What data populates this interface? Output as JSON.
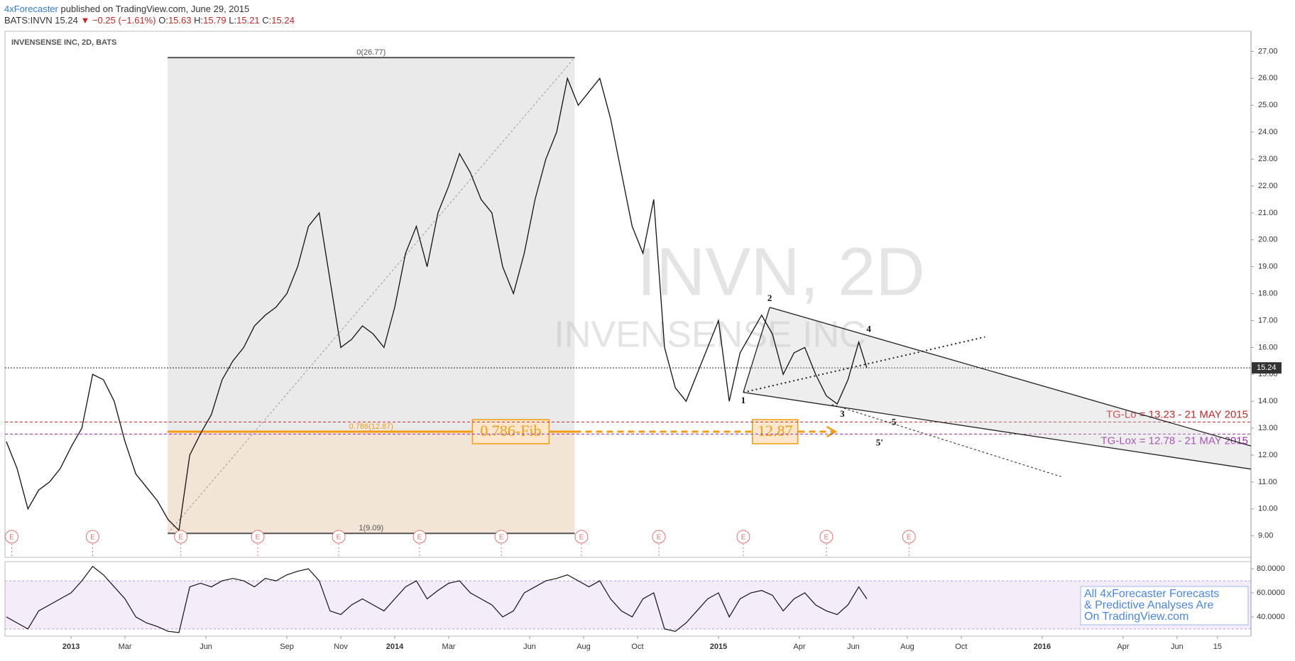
{
  "header": {
    "publisher": "4xForecaster",
    "published": "published on TradingView.com, June 29, 2015",
    "symbol": "BATS:INVN",
    "last": "15.24",
    "change": "▼ −0.25 (−1.61%)",
    "ohlc": [
      {
        "key": "O:",
        "value": "15.63"
      },
      {
        "key": "H:",
        "value": "15.79"
      },
      {
        "key": "L:",
        "value": "15.21"
      },
      {
        "key": "C:",
        "value": "15.24"
      }
    ]
  },
  "note": [
    "All 4xForecaster Forecasts",
    "& Predictive Analyses Are",
    "On TradingView.com"
  ],
  "chart_data": {
    "type": "line",
    "title": "INVENSENSE INC, 2D, BATS",
    "watermark": [
      "INVN, 2D",
      "INVENSENSE INC"
    ],
    "color": "#111111",
    "x": [
      -2.4,
      -2.0,
      -1.6,
      -1.2,
      -0.8,
      -0.4,
      0.0,
      0.4,
      0.8,
      1.2,
      1.6,
      2.0,
      2.4,
      2.8,
      3.2,
      3.6,
      4.0,
      4.4,
      4.8,
      5.2,
      5.6,
      6.0,
      6.4,
      6.8,
      7.2,
      7.6,
      8.0,
      8.4,
      8.8,
      9.2,
      9.6,
      10.0,
      10.4,
      10.8,
      11.2,
      11.6,
      12.0,
      12.4,
      12.8,
      13.2,
      13.6,
      14.0,
      14.4,
      14.8,
      15.2,
      15.6,
      16.0,
      16.4,
      16.8,
      17.2,
      17.6,
      18.0,
      18.4,
      18.8,
      19.2,
      19.6,
      20.0,
      20.4,
      20.8,
      21.2,
      21.6,
      22.0,
      22.4,
      22.8,
      23.2,
      23.6,
      24.0,
      24.4,
      24.8,
      25.2,
      25.6,
      26.0,
      26.4,
      26.8,
      27.2,
      27.6,
      28.0,
      28.4,
      28.8,
      29.2,
      29.5
    ],
    "values": [
      12.5,
      11.5,
      10.0,
      10.7,
      11.0,
      11.5,
      12.3,
      13.0,
      15.0,
      14.8,
      14.0,
      12.5,
      11.3,
      10.8,
      10.3,
      9.6,
      9.2,
      12.0,
      12.8,
      13.5,
      14.8,
      15.5,
      16.0,
      16.8,
      17.2,
      17.5,
      18.0,
      19.0,
      20.5,
      21.0,
      18.5,
      16.0,
      16.3,
      16.8,
      16.5,
      16.0,
      17.5,
      19.5,
      20.5,
      19.0,
      21.0,
      22.0,
      23.2,
      22.5,
      21.5,
      21.0,
      19.0,
      18.0,
      19.5,
      21.5,
      23.0,
      24.0,
      26.0,
      25.0,
      25.5,
      26.0,
      24.5,
      22.5,
      20.5,
      19.5,
      21.5,
      16.0,
      14.5,
      14.0,
      15.0,
      16.0,
      17.0,
      14.0,
      15.8,
      16.5,
      17.2,
      16.5,
      15.0,
      15.8,
      16.0,
      15.0,
      14.2,
      13.9,
      14.8,
      16.2,
      15.24
    ],
    "xlim": [
      -2.45,
      43.74
    ],
    "xticks": [
      {
        "value": 0,
        "label": "2013"
      },
      {
        "value": 2,
        "label": "Mar"
      },
      {
        "value": 5,
        "label": "Jun"
      },
      {
        "value": 8,
        "label": "Sep"
      },
      {
        "value": 10,
        "label": "Nov"
      },
      {
        "value": 12,
        "label": "2014"
      },
      {
        "value": 14,
        "label": "Mar"
      },
      {
        "value": 17,
        "label": "Jun"
      },
      {
        "value": 19,
        "label": "Aug"
      },
      {
        "value": 21,
        "label": "Oct"
      },
      {
        "value": 24,
        "label": "2015"
      },
      {
        "value": 27,
        "label": "Apr"
      },
      {
        "value": 29,
        "label": "Jun"
      },
      {
        "value": 31,
        "label": "Aug"
      },
      {
        "value": 33,
        "label": "Oct"
      },
      {
        "value": 36,
        "label": "2016"
      },
      {
        "value": 39,
        "label": "Apr"
      },
      {
        "value": 41,
        "label": "Jun"
      },
      {
        "value": 42.5,
        "label": "15"
      }
    ],
    "ylim": [
      8.2,
      27.75
    ],
    "yticks": [
      {
        "value": 9,
        "label": "9.00"
      },
      {
        "value": 10,
        "label": "10.00"
      },
      {
        "value": 11,
        "label": "11.00"
      },
      {
        "value": 12,
        "label": "12.00"
      },
      {
        "value": 13,
        "label": "13.00"
      },
      {
        "value": 14,
        "label": "14.00"
      },
      {
        "value": 15,
        "label": "15.00"
      },
      {
        "value": 16,
        "label": "16.00"
      },
      {
        "value": 17,
        "label": "17.00"
      },
      {
        "value": 18,
        "label": "18.00"
      },
      {
        "value": 19,
        "label": "19.00"
      },
      {
        "value": 20,
        "label": "20.00"
      },
      {
        "value": 21,
        "label": "21.00"
      },
      {
        "value": 22,
        "label": "22.00"
      },
      {
        "value": 23,
        "label": "23.00"
      },
      {
        "value": 24,
        "label": "24.00"
      },
      {
        "value": 25,
        "label": "25.00"
      },
      {
        "value": 26,
        "label": "26.00"
      },
      {
        "value": 27,
        "label": "27.00"
      }
    ],
    "last_price": 15.24,
    "fib": {
      "x": [
        3.58,
        18.67
      ],
      "levels": [
        {
          "value": 26.77,
          "label": "0(26.77)"
        },
        {
          "value": 12.87,
          "label": "0.786(12.87)"
        },
        {
          "value": 9.09,
          "label": "1(9.09)"
        }
      ],
      "callout": "0.786-Fib",
      "target": 12.87,
      "projection_x": [
        18.67,
        28.28
      ],
      "color": "#f39c12"
    },
    "targets": [
      {
        "value": 13.23,
        "label": "TG-Lo = 13.23 - 21 MAY 2015",
        "color": "#c62828"
      },
      {
        "value": 12.78,
        "label": "TG-Lox = 12.78 - 21 MAY 2015",
        "color": "#9c27b0"
      }
    ],
    "wedge": {
      "upper": [
        [
          25.9,
          17.49
        ],
        [
          43.74,
          12.34
        ]
      ],
      "lower": [
        [
          24.92,
          14.33
        ],
        [
          43.74,
          11.48
        ]
      ]
    },
    "dotted": [
      [
        [
          24.92,
          14.33
        ],
        [
          33.88,
          16.39
        ]
      ],
      [
        [
          28.2,
          13.88
        ],
        [
          36.7,
          11.2
        ]
      ]
    ],
    "waves": [
      {
        "label": "1",
        "x": 24.92,
        "y": 14.0
      },
      {
        "label": "2",
        "x": 25.9,
        "y": 17.8
      },
      {
        "label": "3",
        "x": 28.59,
        "y": 13.5
      },
      {
        "label": "4",
        "x": 29.57,
        "y": 16.65
      },
      {
        "label": "5",
        "x": 30.5,
        "y": 13.2
      },
      {
        "label": "5'",
        "x": 29.97,
        "y": 12.43
      }
    ],
    "earnings": {
      "label": "E",
      "x": [
        -2.2,
        0.8,
        4.07,
        6.92,
        9.92,
        12.92,
        15.95,
        18.92,
        21.79,
        24.92,
        28.0,
        31.06
      ]
    },
    "rsi": {
      "values": [
        40,
        35,
        30,
        45,
        50,
        55,
        60,
        70,
        82,
        75,
        65,
        55,
        40,
        35,
        32,
        28,
        27,
        65,
        68,
        65,
        70,
        72,
        70,
        65,
        72,
        70,
        75,
        78,
        80,
        70,
        45,
        42,
        50,
        55,
        50,
        45,
        55,
        65,
        70,
        55,
        62,
        68,
        70,
        60,
        55,
        50,
        40,
        45,
        60,
        65,
        70,
        72,
        75,
        70,
        65,
        70,
        55,
        45,
        40,
        55,
        60,
        30,
        28,
        35,
        45,
        55,
        60,
        40,
        55,
        60,
        62,
        58,
        45,
        55,
        60,
        50,
        45,
        42,
        50,
        65,
        55
      ],
      "ylim": [
        24,
        86
      ],
      "yticks": [
        {
          "value": 40,
          "label": "40.0000"
        },
        {
          "value": 60,
          "label": "60.0000"
        },
        {
          "value": 80,
          "label": "80.0000"
        }
      ],
      "band": [
        30,
        70
      ],
      "color": "#111111"
    }
  }
}
